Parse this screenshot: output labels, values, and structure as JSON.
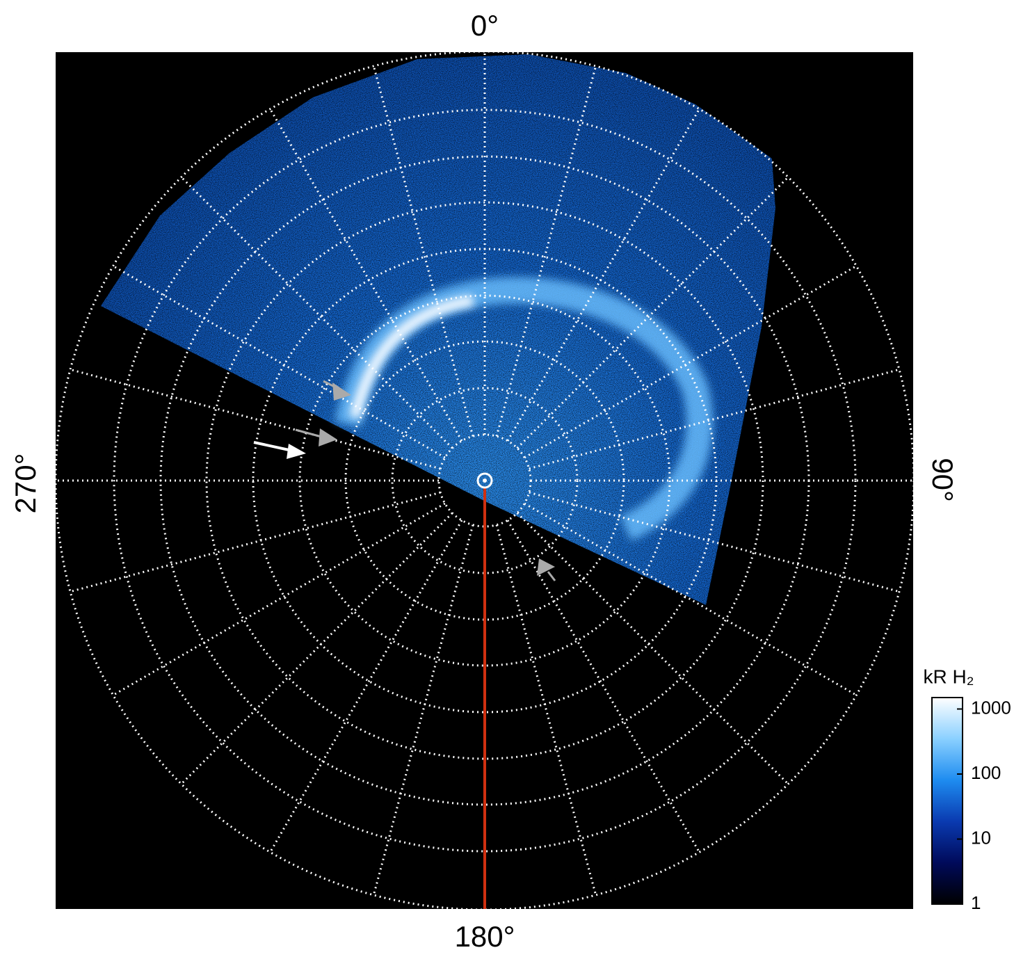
{
  "chart_data": {
    "type": "polar-image",
    "angle_labels": {
      "top": "0°",
      "right": "90°",
      "bottom": "180°",
      "left": "270°"
    },
    "colorbar": {
      "label": "kR H₂",
      "scale": "log",
      "lim": [
        1,
        1500
      ],
      "ticks": [
        1,
        10,
        100,
        1000
      ],
      "colors": [
        "#000000",
        "#000a5a",
        "#0a3ab0",
        "#1e8cf0",
        "#8ad0ff",
        "#ffffff"
      ]
    }
  }
}
